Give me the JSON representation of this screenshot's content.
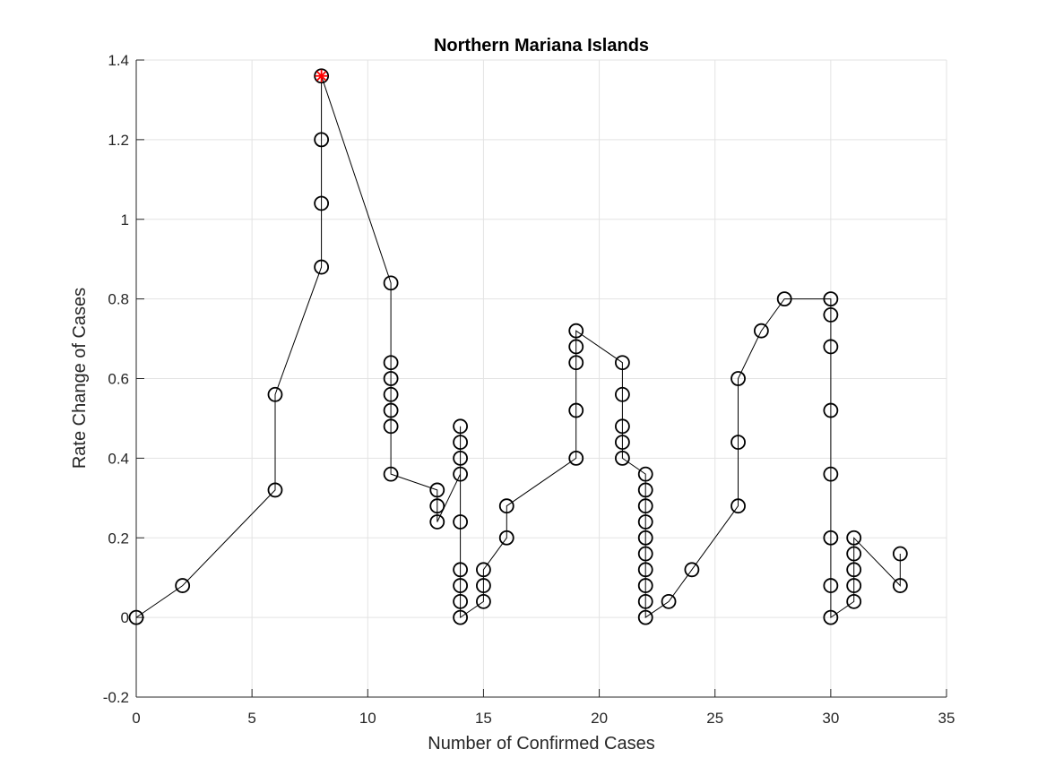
{
  "chart_data": {
    "type": "line",
    "title": "Northern Mariana Islands",
    "xlabel": "Number of Confirmed Cases",
    "ylabel": "Rate Change of Cases",
    "xlim": [
      0,
      35
    ],
    "ylim": [
      -0.2,
      1.4
    ],
    "xticks": [
      0,
      5,
      10,
      15,
      20,
      25,
      30,
      35
    ],
    "yticks": [
      -0.2,
      0,
      0.2,
      0.4,
      0.6,
      0.8,
      1,
      1.2,
      1.4
    ],
    "xtick_labels": [
      "0",
      "5",
      "10",
      "15",
      "20",
      "25",
      "30",
      "35"
    ],
    "ytick_labels": [
      "-0.2",
      "0",
      "0.2",
      "0.4",
      "0.6",
      "0.8",
      "1",
      "1.2",
      "1.4"
    ],
    "grid": true,
    "marker": "circle",
    "line_color": "#000000",
    "highlight_color": "#ff0000",
    "series": [
      {
        "x": [
          0,
          2,
          6,
          6,
          8,
          8,
          8,
          8,
          11,
          11,
          11,
          11,
          11,
          11,
          11,
          13,
          13,
          13,
          14,
          14,
          14,
          14,
          14,
          14,
          14,
          14,
          14,
          15,
          15,
          15,
          16,
          16,
          19,
          19,
          19,
          19,
          19,
          21,
          21,
          21,
          21,
          21,
          22,
          22,
          22,
          22,
          22,
          22,
          22,
          22,
          22,
          22,
          23,
          24,
          26,
          26,
          26,
          27,
          28,
          30,
          30,
          30,
          30,
          30,
          30,
          30,
          30,
          31,
          31,
          31,
          31,
          31,
          33,
          33
        ],
        "y": [
          0,
          0.08,
          0.32,
          0.56,
          0.88,
          1.04,
          1.2,
          1.36,
          0.84,
          0.64,
          0.6,
          0.56,
          0.52,
          0.48,
          0.36,
          0.32,
          0.28,
          0.24,
          0.36,
          0.48,
          0.44,
          0.4,
          0.24,
          0.12,
          0.08,
          0.04,
          0,
          0.04,
          0.08,
          0.12,
          0.2,
          0.28,
          0.4,
          0.52,
          0.64,
          0.68,
          0.72,
          0.64,
          0.56,
          0.48,
          0.44,
          0.4,
          0.36,
          0.32,
          0.28,
          0.24,
          0.2,
          0.16,
          0.12,
          0.08,
          0.04,
          0,
          0.04,
          0.12,
          0.28,
          0.44,
          0.6,
          0.72,
          0.8,
          0.8,
          0.76,
          0.68,
          0.52,
          0.36,
          0.2,
          0.08,
          0,
          0.04,
          0.08,
          0.12,
          0.16,
          0.2,
          0.08,
          0.16
        ]
      }
    ],
    "highlight_point": {
      "x": 8,
      "y": 1.36,
      "marker": "asterisk-circle"
    }
  }
}
